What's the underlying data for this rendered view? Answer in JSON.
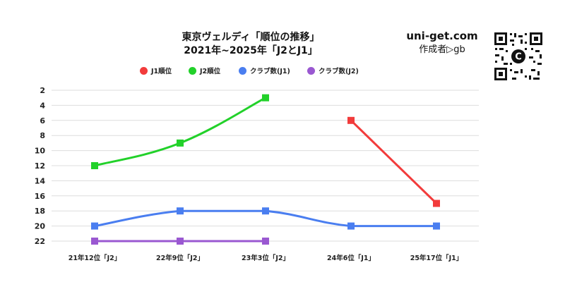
{
  "header": {
    "title_line1": "東京ヴェルディ「順位の推移」",
    "title_line2": "2021年~2025年「J2とJ1」"
  },
  "brand": {
    "site": "uni-get.com",
    "author": "作成者▷gb"
  },
  "qr": {
    "center_glyph": "C"
  },
  "chart_data": {
    "type": "line",
    "title": "東京ヴェルディ「順位の推移」",
    "subtitle": "2021年~2025年「J2とJ1」",
    "categories": [
      "21年12位「J2」",
      "22年9位「J2」",
      "23年3位「J2」",
      "24年6位「J1」",
      "25年17位「J1」"
    ],
    "y_ticks": [
      2,
      4,
      6,
      8,
      10,
      12,
      14,
      16,
      18,
      20,
      22
    ],
    "ylim": [
      2,
      22
    ],
    "y_inverted": true,
    "grid": true,
    "legend_position": "top-center",
    "series": [
      {
        "name": "J1順位",
        "color": "#f23b3b",
        "marker": "square",
        "values": [
          null,
          null,
          null,
          6,
          17
        ]
      },
      {
        "name": "J2順位",
        "color": "#22d12a",
        "marker": "square",
        "values": [
          12,
          9,
          3,
          null,
          null
        ]
      },
      {
        "name": "クラブ数(J1)",
        "color": "#4a7ef0",
        "marker": "square",
        "values": [
          20,
          18,
          18,
          20,
          20
        ]
      },
      {
        "name": "クラブ数(J2)",
        "color": "#9a58d1",
        "marker": "square",
        "values": [
          22,
          22,
          22,
          null,
          null
        ]
      }
    ]
  }
}
